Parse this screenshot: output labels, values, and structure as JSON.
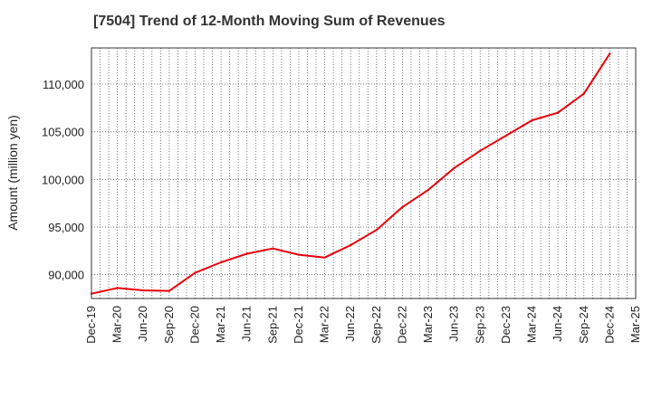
{
  "chart_data": {
    "type": "line",
    "title": "[7504]  Trend of 12-Month Moving Sum of Revenues",
    "xlabel": "",
    "ylabel": "Amount (million yen)",
    "ylim": [
      87500,
      113800
    ],
    "y_ticks": [
      90000,
      95000,
      100000,
      105000,
      110000
    ],
    "y_tick_labels": [
      "90,000",
      "95,000",
      "100,000",
      "105,000",
      "110,000"
    ],
    "x_tick_labels": [
      "Dec-19",
      "Mar-20",
      "Jun-20",
      "Sep-20",
      "Dec-20",
      "Mar-21",
      "Jun-21",
      "Sep-21",
      "Dec-21",
      "Mar-22",
      "Jun-22",
      "Sep-22",
      "Dec-22",
      "Mar-23",
      "Jun-23",
      "Sep-23",
      "Dec-23",
      "Mar-24",
      "Jun-24",
      "Sep-24",
      "Dec-24",
      "Mar-25"
    ],
    "grid": true,
    "series": [
      {
        "color": "#e8000b",
        "x": [
          "Dec-19",
          "Mar-20",
          "Jun-20",
          "Sep-20",
          "Dec-20",
          "Mar-21",
          "Jun-21",
          "Sep-21",
          "Dec-21",
          "Mar-22",
          "Jun-22",
          "Sep-22",
          "Dec-22",
          "Mar-23",
          "Jun-23",
          "Sep-23",
          "Dec-23",
          "Mar-24",
          "Jun-24",
          "Sep-24",
          "Dec-24"
        ],
        "values": [
          88000,
          88600,
          88350,
          88300,
          90200,
          91300,
          92200,
          92750,
          92100,
          91800,
          93100,
          94700,
          97100,
          98900,
          101200,
          103000,
          104600,
          106200,
          107000,
          109000,
          113200
        ]
      }
    ]
  }
}
